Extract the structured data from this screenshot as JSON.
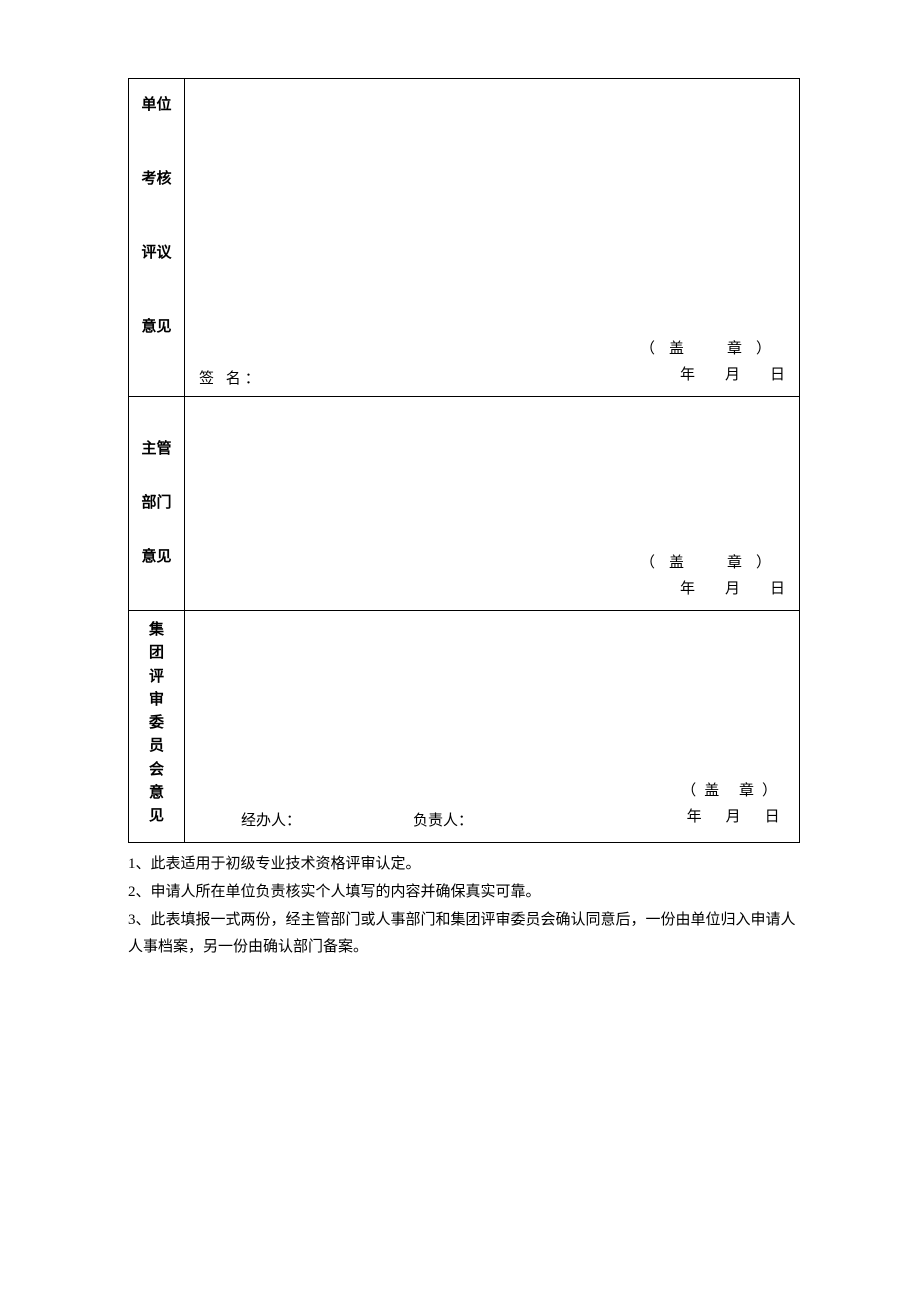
{
  "table": {
    "row1": {
      "label_chars": [
        "单位",
        "考核",
        "评议",
        "意见"
      ],
      "signature_label": "签 名：",
      "seal": "（盖　章）",
      "date": {
        "year": "年",
        "month": "月",
        "day": "日"
      }
    },
    "row2": {
      "label_chars": [
        "主管",
        "部门",
        "意见"
      ],
      "seal": "（盖　章）",
      "date": {
        "year": "年",
        "month": "月",
        "day": "日"
      }
    },
    "row3": {
      "label_chars": [
        "集",
        "团",
        "评",
        "审",
        "委",
        "员",
        "会",
        "意",
        "见"
      ],
      "handler_label": "经办人：",
      "responsible_label": "负责人：",
      "seal": "（盖  章）",
      "date": {
        "year": "年",
        "month": "月",
        "day": "日"
      }
    }
  },
  "notes": {
    "n1": "1、此表适用于初级专业技术资格评审认定。",
    "n2": "2、申请人所在单位负责核实个人填写的内容并确保真实可靠。",
    "n3": "3、此表填报一式两份，经主管部门或人事部门和集团评审委员会确认同意后，一份由单位归入申请人人事档案，另一份由确认部门备案。"
  },
  "style": {
    "font_family": "SimSun",
    "border_color": "#000000",
    "background": "#ffffff",
    "label_fontsize": 15,
    "body_fontsize": 15
  }
}
